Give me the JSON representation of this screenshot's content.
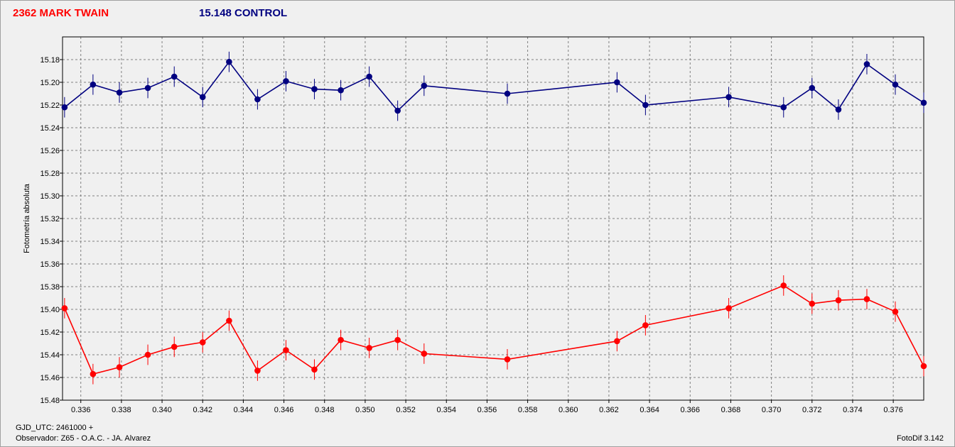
{
  "header": {
    "target_label": "2362 MARK TWAIN",
    "control_label": "15.148 CONTROL"
  },
  "footer": {
    "gjd": "GJD_UTC: 2461000 +",
    "observer": "Observador: Z65 - O.A.C. - JA. Alvarez",
    "software": "FotoDif 3.142"
  },
  "colors": {
    "target": "#ff0000",
    "control": "#000080",
    "grid": "#808080",
    "plot_bg": "#f0f0f0"
  },
  "chart_data": {
    "type": "line",
    "ylabel": "Fotometría absoluta",
    "xlabel": "",
    "ylim": [
      15.48,
      15.16
    ],
    "y_inverted": true,
    "xlim": [
      0.3351,
      0.3775
    ],
    "yticks": [
      15.18,
      15.2,
      15.22,
      15.24,
      15.26,
      15.28,
      15.3,
      15.32,
      15.34,
      15.36,
      15.38,
      15.4,
      15.42,
      15.44,
      15.46,
      15.48
    ],
    "xticks": [
      0.336,
      0.338,
      0.34,
      0.342,
      0.344,
      0.346,
      0.348,
      0.35,
      0.352,
      0.354,
      0.356,
      0.358,
      0.36,
      0.362,
      0.364,
      0.366,
      0.368,
      0.37,
      0.372,
      0.374,
      0.376
    ],
    "grid": true,
    "error_bar": 0.009,
    "series": [
      {
        "name": "2362 MARK TWAIN",
        "key": "target",
        "x": [
          0.3352,
          0.3366,
          0.3379,
          0.3393,
          0.3406,
          0.342,
          0.3433,
          0.3447,
          0.3461,
          0.3475,
          0.3488,
          0.3502,
          0.3516,
          0.3529,
          0.357,
          0.3624,
          0.3638,
          0.3679,
          0.3706,
          0.372,
          0.3733,
          0.3747,
          0.3761,
          0.3775
        ],
        "y": [
          15.399,
          15.457,
          15.451,
          15.44,
          15.433,
          15.429,
          15.41,
          15.454,
          15.436,
          15.453,
          15.427,
          15.434,
          15.427,
          15.439,
          15.444,
          15.428,
          15.414,
          15.399,
          15.379,
          15.395,
          15.392,
          15.391,
          15.402,
          15.45
        ]
      },
      {
        "name": "15.148 CONTROL",
        "key": "control",
        "x": [
          0.3352,
          0.3366,
          0.3379,
          0.3393,
          0.3406,
          0.342,
          0.3433,
          0.3447,
          0.3461,
          0.3475,
          0.3488,
          0.3502,
          0.3516,
          0.3529,
          0.357,
          0.3624,
          0.3638,
          0.3679,
          0.3706,
          0.372,
          0.3733,
          0.3747,
          0.3761,
          0.3775
        ],
        "y": [
          15.222,
          15.202,
          15.209,
          15.205,
          15.195,
          15.213,
          15.182,
          15.215,
          15.199,
          15.206,
          15.207,
          15.195,
          15.225,
          15.203,
          15.21,
          15.2,
          15.22,
          15.213,
          15.222,
          15.205,
          15.224,
          15.184,
          15.202,
          15.218
        ]
      }
    ]
  }
}
